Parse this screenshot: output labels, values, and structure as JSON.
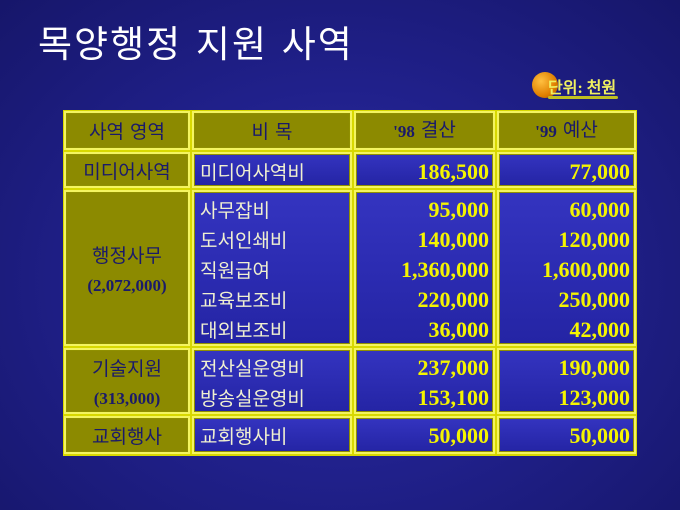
{
  "title": "목양행정 지원 사역",
  "unit_label": "단위: 천원",
  "headers": {
    "area": "사역 영역",
    "item": "비 목",
    "y98_year": "'98",
    "y98_label": "결산",
    "y99_year": "'99",
    "y99_label": "예산"
  },
  "rows": [
    {
      "area": "미디어사역",
      "subtotal": "",
      "items": [
        "미디어사역비"
      ],
      "y98": [
        "186,500"
      ],
      "y99": [
        "77,000"
      ]
    },
    {
      "area": "행정사무",
      "subtotal": "(2,072,000)",
      "items": [
        "사무잡비",
        "도서인쇄비",
        "직원급여",
        "교육보조비",
        "대외보조비"
      ],
      "y98": [
        "95,000",
        "140,000",
        "1,360,000",
        "220,000",
        "36,000"
      ],
      "y99": [
        "60,000",
        "120,000",
        "1,600,000",
        "250,000",
        "42,000"
      ]
    },
    {
      "area": "기술지원",
      "subtotal": "(313,000)",
      "items": [
        "전산실운영비",
        "방송실운영비"
      ],
      "y98": [
        "237,000",
        "153,100"
      ],
      "y99": [
        "190,000",
        "123,000"
      ]
    },
    {
      "area": "교회행사",
      "subtotal": "",
      "items": [
        "교회행사비"
      ],
      "y98": [
        "50,000"
      ],
      "y99": [
        "50,000"
      ]
    }
  ],
  "colors": {
    "olive": "#8c8a00",
    "cell_blue": "#2c2cb4",
    "border": "#e0e000",
    "number": "#f4f400"
  }
}
